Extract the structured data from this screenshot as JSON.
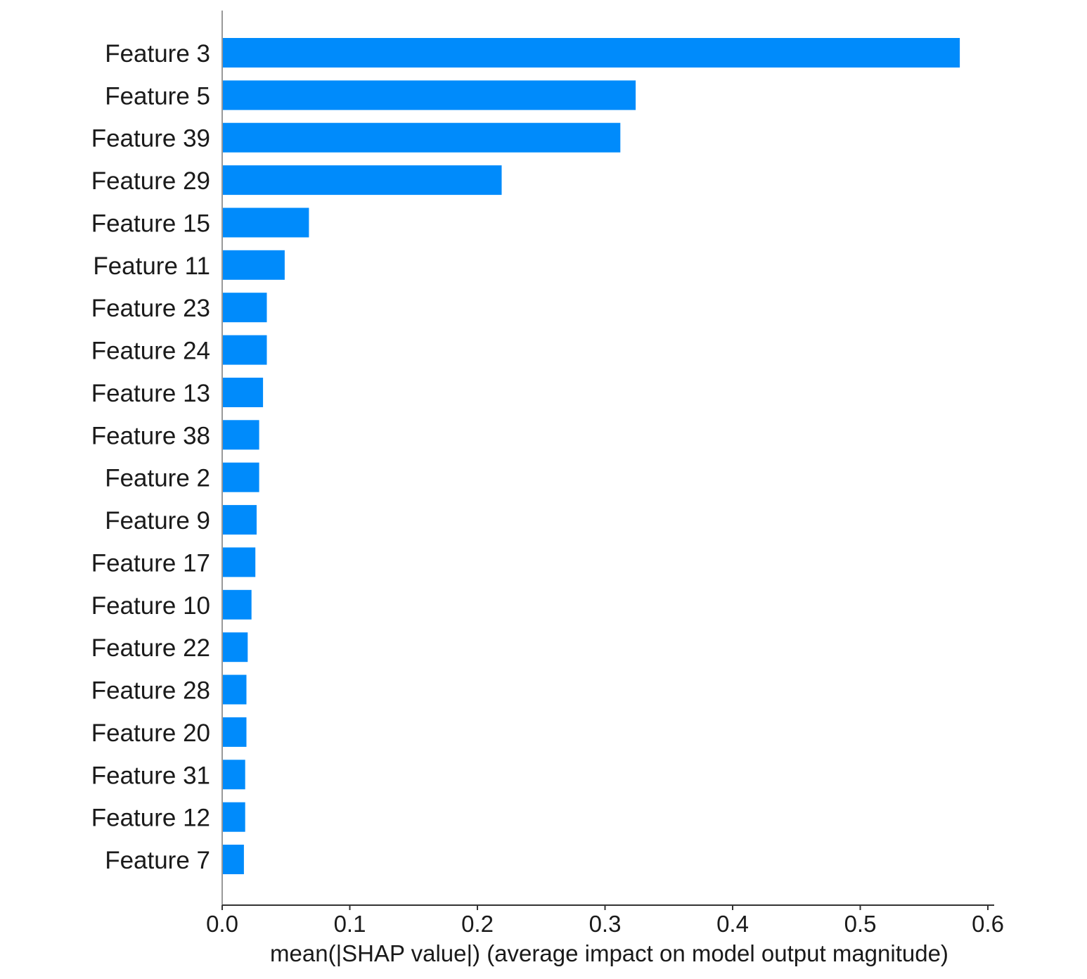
{
  "chart_data": {
    "type": "bar",
    "orientation": "horizontal",
    "categories": [
      "Feature 3",
      "Feature 5",
      "Feature 39",
      "Feature 29",
      "Feature 15",
      "Feature 11",
      "Feature 23",
      "Feature 24",
      "Feature 13",
      "Feature 38",
      "Feature 2",
      "Feature 9",
      "Feature 17",
      "Feature 10",
      "Feature 22",
      "Feature 28",
      "Feature 20",
      "Feature 31",
      "Feature 12",
      "Feature 7"
    ],
    "values": [
      0.578,
      0.324,
      0.312,
      0.219,
      0.068,
      0.049,
      0.035,
      0.035,
      0.032,
      0.029,
      0.029,
      0.027,
      0.026,
      0.023,
      0.02,
      0.019,
      0.019,
      0.018,
      0.018,
      0.017
    ],
    "xlabel": "mean(|SHAP value|) (average impact on model output magnitude)",
    "ylabel": "",
    "title": "",
    "xlim": [
      0,
      0.6
    ],
    "xticks": [
      "0.0",
      "0.1",
      "0.2",
      "0.3",
      "0.4",
      "0.5",
      "0.6"
    ],
    "bar_color": "#008bfb",
    "axis_color": "#333333",
    "grid": false,
    "legend": "none"
  }
}
